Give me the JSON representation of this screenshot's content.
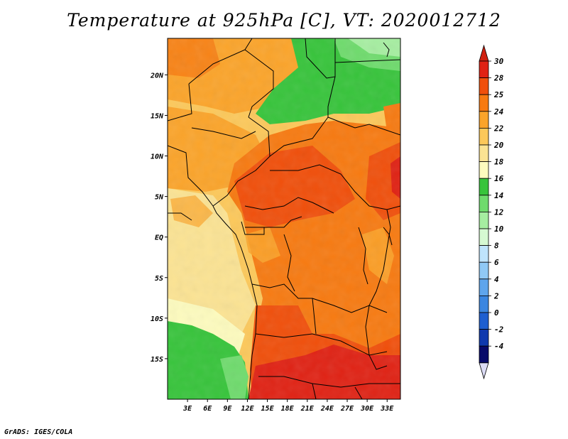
{
  "title": "Temperature at 925hPa [C], VT: 2020012712",
  "credit": "GrADS: IGES/COLA",
  "map": {
    "lon_range": [
      0,
      35
    ],
    "lat_range": [
      -20,
      24.5
    ],
    "lon_ticks": [
      "3E",
      "6E",
      "9E",
      "12E",
      "15E",
      "18E",
      "21E",
      "24E",
      "27E",
      "30E",
      "33E"
    ],
    "lat_ticks": [
      "20N",
      "15N",
      "10N",
      "5N",
      "EQ",
      "5S",
      "10S",
      "15S"
    ],
    "borders_color": "#000000"
  },
  "colorbar": {
    "labels": [
      "30",
      "28",
      "25",
      "24",
      "22",
      "20",
      "18",
      "16",
      "14",
      "12",
      "10",
      "8",
      "6",
      "4",
      "2",
      "0",
      "-2",
      "-4"
    ],
    "colors": [
      "#e02214",
      "#f04f0b",
      "#f77a11",
      "#fba42a",
      "#fcc85a",
      "#fbe393",
      "#fdfbbe",
      "#37c43b",
      "#6fdb6d",
      "#a6eea1",
      "#d6f9d2",
      "#bfe4fc",
      "#90c9f5",
      "#5fa5ec",
      "#3b86e0",
      "#1e5fd0",
      "#0f39ae",
      "#080a6a"
    ],
    "overflow_low_color": "#dcdcf6",
    "overflow_high_color": "#d0200f"
  }
}
